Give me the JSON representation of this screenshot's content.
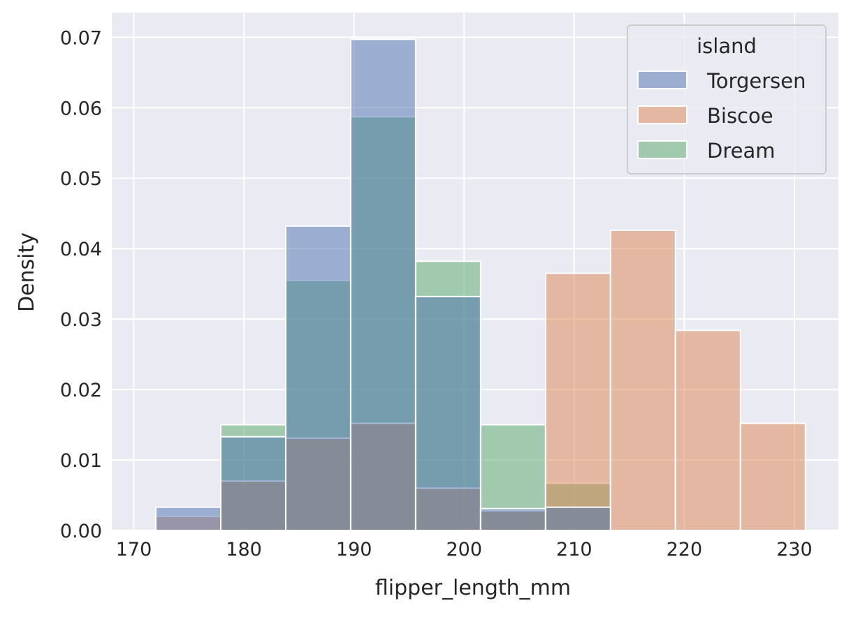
{
  "chart_data": {
    "type": "bar",
    "subtype": "overlapping-histogram",
    "title": "",
    "xlabel": "flipper_length_mm",
    "ylabel": "Density",
    "xlim": [
      168,
      234
    ],
    "ylim": [
      0,
      0.0735
    ],
    "xticks": [
      170,
      180,
      190,
      200,
      210,
      220,
      230
    ],
    "xtick_labels": [
      "170",
      "180",
      "190",
      "200",
      "210",
      "220",
      "230"
    ],
    "yticks": [
      0,
      0.01,
      0.02,
      0.03,
      0.04,
      0.05,
      0.06,
      0.07
    ],
    "ytick_labels": [
      "0.00",
      "0.01",
      "0.02",
      "0.03",
      "0.04",
      "0.05",
      "0.06",
      "0.07"
    ],
    "grid": true,
    "bin_edges": [
      172,
      177.9,
      183.8,
      189.7,
      195.6,
      201.5,
      207.4,
      213.3,
      219.2,
      225.1,
      231
    ],
    "legend": {
      "title": "island",
      "placement": "top-right"
    },
    "series": [
      {
        "name": "Torgersen",
        "color": "#4c72b0",
        "values": [
          0.0033,
          0.0133,
          0.0432,
          0.0697,
          0.0332,
          0.0031,
          0.0033,
          0,
          0,
          0
        ]
      },
      {
        "name": "Biscoe",
        "color": "#dd8452",
        "values": [
          0.002,
          0.007,
          0.0131,
          0.0152,
          0.006,
          0.0028,
          0.0365,
          0.0426,
          0.0284,
          0.0152
        ]
      },
      {
        "name": "Dream",
        "color": "#55a868",
        "values": [
          0,
          0.015,
          0.0355,
          0.0587,
          0.0382,
          0.015,
          0.0067,
          0,
          0,
          0
        ]
      }
    ]
  }
}
